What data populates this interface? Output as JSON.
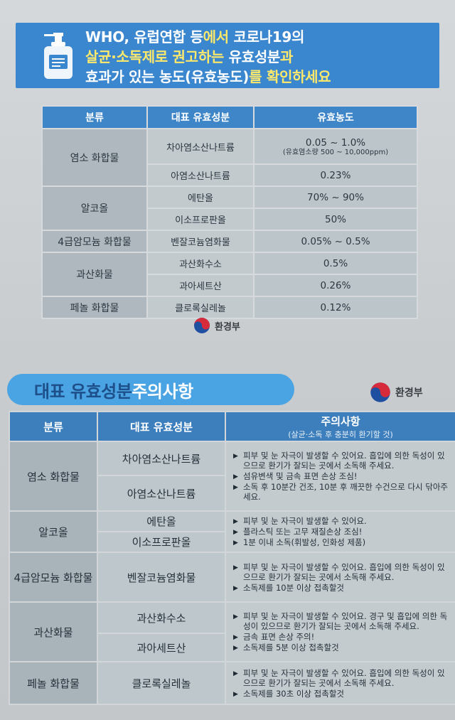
{
  "banner": {
    "line1_a": "WHO, 유럽연합 등",
    "line1_b": "에서 ",
    "line1_c": "코로나19의",
    "line2_a": "살균·소독제로 권고하는 ",
    "line2_b": "유효성분",
    "line2_c": "과",
    "line3_a": "효과가 있는 농도(유효농도)",
    "line3_b": "를 확인하세요",
    "icon": "sanitizer-bottle-icon"
  },
  "table1": {
    "headers": [
      "분류",
      "대표 유효성분",
      "유효농도"
    ],
    "rows": [
      {
        "category": "염소 화합물",
        "component": "차아염소산나트륨",
        "concentration": "0.05 ~ 1.0%",
        "note": "(유효염소량 500 ~ 10,000ppm)"
      },
      {
        "category": "",
        "component": "아염소산나트륨",
        "concentration": "0.23%",
        "note": ""
      },
      {
        "category": "알코올",
        "component": "에탄올",
        "concentration": "70% ~ 90%",
        "note": ""
      },
      {
        "category": "",
        "component": "이소프로판올",
        "concentration": "50%",
        "note": ""
      },
      {
        "category": "4급암모늄 화합물",
        "component": "벤잘코늄염화물",
        "concentration": "0.05% ~ 0.5%",
        "note": ""
      },
      {
        "category": "과산화물",
        "component": "과산화수소",
        "concentration": "0.5%",
        "note": ""
      },
      {
        "category": "",
        "component": "과아세트산",
        "concentration": "0.26%",
        "note": ""
      },
      {
        "category": "페놀 화합물",
        "component": "클로록실레놀",
        "concentration": "0.12%",
        "note": ""
      }
    ]
  },
  "ministry": {
    "name": "환경부",
    "icon": "taegeuk-logo-icon"
  },
  "section2": {
    "title_a": "대표 유효성분 ",
    "title_b": "주의사항"
  },
  "table2": {
    "headers": {
      "category": "분류",
      "component": "대표 유효성분",
      "caution": "주의사항",
      "caution_sub": "(살균·소독 후 충분히 환기할 것)"
    },
    "groups": [
      {
        "category": "염소 화합물",
        "components": [
          "차아염소산나트륨",
          "아염소산나트륨"
        ],
        "notes": [
          "피부 및 눈 자극이 발생할 수 있어요. 흡입에 의한 독성이 있으므로 환기가 잘되는 곳에서 소독해 주세요.",
          "섬유변색 및 금속 표면 손상 조심!",
          "소독 후 10분간 건조, 10분 후 깨끗한 수건으로 다시 닦아주세요."
        ]
      },
      {
        "category": "알코올",
        "components": [
          "에탄올",
          "이소프로판올"
        ],
        "notes": [
          "피부 및 눈 자극이 발생할 수 있어요.",
          "플라스틱 또는 고무 재질손상 조심!",
          "1분 이내 소독(휘발성, 인화성 제품)"
        ]
      },
      {
        "category": "4급암모늄 화합물",
        "components": [
          "벤잘코늄염화물"
        ],
        "notes": [
          "피부 및 눈 자극이 발생할 수 있어요. 흡입에 의한 독성이 있으므로 환기가 잘되는 곳에서 소독해 주세요.",
          "소독제를 10분 이상 접촉할것"
        ]
      },
      {
        "category": "과산화물",
        "components": [
          "과산화수소",
          "과아세트산"
        ],
        "notes": [
          "피부 및 눈 자극이 발생할 수 있어요. 경구 및 흡입에 의한 독성이 있으므로 환기가 잘되는 곳에서 소독해 주세요.",
          "금속 표면 손상 주의!",
          "소독제를 5분 이상 접촉할것"
        ]
      },
      {
        "category": "페놀 화합물",
        "components": [
          "클로록실레놀"
        ],
        "notes": [
          "피부 및 눈 자극이 발생할 수 있어요. 흡입에 의한 독성이 있으므로 환기가 잘되는 곳에서 소독해 주세요.",
          "소독제를 30초 이상 접촉할것"
        ]
      }
    ]
  }
}
